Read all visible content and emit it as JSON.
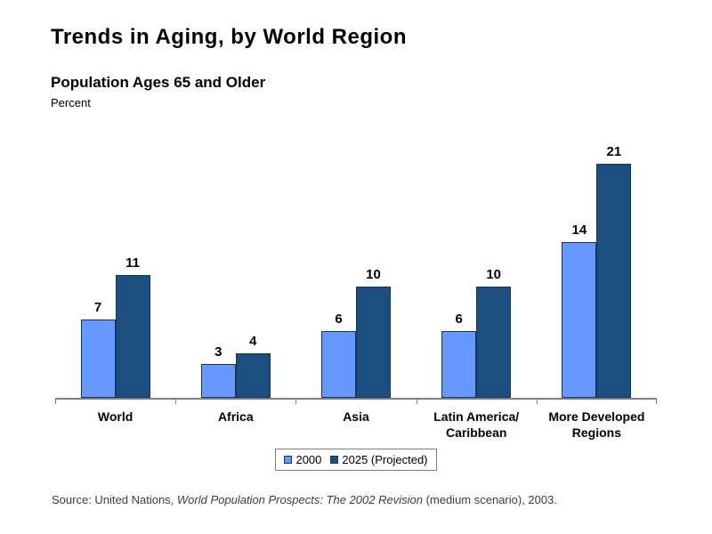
{
  "header": {
    "title": "Trends in Aging, by World Region",
    "subtitle": "Population Ages 65 and Older",
    "unit_label": "Percent"
  },
  "chart_data": {
    "type": "bar",
    "categories": [
      "World",
      "Africa",
      "Asia",
      "Latin America/\nCaribbean",
      "More Developed\nRegions"
    ],
    "series": [
      {
        "name": "2000",
        "color": "#6699FF",
        "values": [
          7,
          3,
          6,
          6,
          14
        ]
      },
      {
        "name": "2025 (Projected)",
        "color": "#1C4E80",
        "values": [
          11,
          4,
          10,
          10,
          21
        ]
      }
    ],
    "title": "Trends in Aging, by World Region",
    "xlabel": "",
    "ylabel": "Percent",
    "ylim": [
      0,
      22
    ],
    "grid": false,
    "legend_position": "bottom",
    "value_labels_shown": true,
    "bar_border_color": "#16365C",
    "axis_color": "#808080"
  },
  "source": {
    "prefix": "Source: United Nations, ",
    "italic_title": "World Population Prospects: The 2002 Revision",
    "suffix": " (medium scenario), 2003."
  }
}
